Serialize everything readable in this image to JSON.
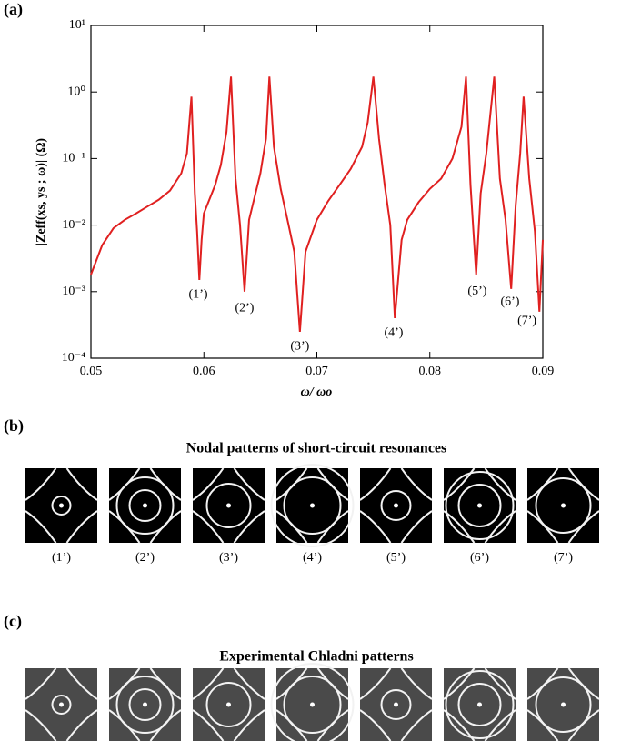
{
  "panel_a_label": "(a)",
  "chart_data": {
    "type": "line",
    "log_y": true,
    "grid": false,
    "ylabel": "|Zeff(xs, ys ; ω)|  (Ω)",
    "xlabel": "ω/ ωo",
    "xlim": [
      0.05,
      0.09
    ],
    "xticks": [
      0.05,
      0.06,
      0.07,
      0.08,
      0.09
    ],
    "ylim": [
      0.0001,
      10
    ],
    "yticks": [
      {
        "value": 0.0001,
        "label": "10⁻⁴"
      },
      {
        "value": 0.001,
        "label": "10⁻³"
      },
      {
        "value": 0.01,
        "label": "10⁻²"
      },
      {
        "value": 0.1,
        "label": "10⁻¹"
      },
      {
        "value": 1,
        "label": "10⁰"
      },
      {
        "value": 10,
        "label": "10¹"
      }
    ],
    "x": [
      0.05,
      0.051,
      0.052,
      0.053,
      0.054,
      0.055,
      0.056,
      0.057,
      0.058,
      0.0585,
      0.0589,
      0.0592,
      0.0594,
      0.0596,
      0.0598,
      0.06,
      0.061,
      0.0615,
      0.062,
      0.0624,
      0.0628,
      0.0632,
      0.0636,
      0.064,
      0.065,
      0.0655,
      0.0658,
      0.0662,
      0.0668,
      0.0675,
      0.068,
      0.0685,
      0.069,
      0.07,
      0.071,
      0.072,
      0.073,
      0.074,
      0.0745,
      0.075,
      0.0755,
      0.076,
      0.0765,
      0.0769,
      0.0775,
      0.078,
      0.079,
      0.08,
      0.081,
      0.082,
      0.0828,
      0.0832,
      0.0836,
      0.0841,
      0.0845,
      0.085,
      0.0857,
      0.0862,
      0.0867,
      0.0872,
      0.0876,
      0.088,
      0.0883,
      0.0888,
      0.0893,
      0.0897,
      0.09
    ],
    "series": [
      {
        "color": "#e02020",
        "values": [
          0.0018,
          0.005,
          0.009,
          0.012,
          0.015,
          0.019,
          0.024,
          0.033,
          0.06,
          0.12,
          0.85,
          0.03,
          0.008,
          0.0015,
          0.006,
          0.015,
          0.04,
          0.08,
          0.25,
          1.7,
          0.05,
          0.01,
          0.001,
          0.012,
          0.06,
          0.2,
          1.7,
          0.15,
          0.035,
          0.01,
          0.004,
          0.00025,
          0.004,
          0.012,
          0.023,
          0.04,
          0.07,
          0.15,
          0.35,
          1.7,
          0.2,
          0.04,
          0.01,
          0.0004,
          0.006,
          0.012,
          0.022,
          0.035,
          0.05,
          0.1,
          0.3,
          1.7,
          0.04,
          0.0018,
          0.03,
          0.12,
          1.7,
          0.05,
          0.012,
          0.0011,
          0.02,
          0.12,
          0.85,
          0.05,
          0.008,
          0.0005,
          0.006
        ]
      }
    ],
    "annotations": [
      {
        "text": "(1’)",
        "x": 0.0595,
        "y": 0.0009
      },
      {
        "text": "(2’)",
        "x": 0.0636,
        "y": 0.00056
      },
      {
        "text": "(3’)",
        "x": 0.0685,
        "y": 0.00015
      },
      {
        "text": "(4’)",
        "x": 0.0768,
        "y": 0.00024
      },
      {
        "text": "(5’)",
        "x": 0.0842,
        "y": 0.001
      },
      {
        "text": "(6’)",
        "x": 0.0871,
        "y": 0.0007
      },
      {
        "text": "(7’)",
        "x": 0.0886,
        "y": 0.00036
      }
    ]
  },
  "panel_b": {
    "label": "(b)",
    "title": "Nodal patterns of short-circuit resonances",
    "patterns": [
      "(1’)",
      "(2’)",
      "(3’)",
      "(4’)",
      "(5’)",
      "(6’)",
      "(7’)"
    ]
  },
  "panel_c": {
    "label": "(c)",
    "title": "Experimental Chladni patterns"
  }
}
